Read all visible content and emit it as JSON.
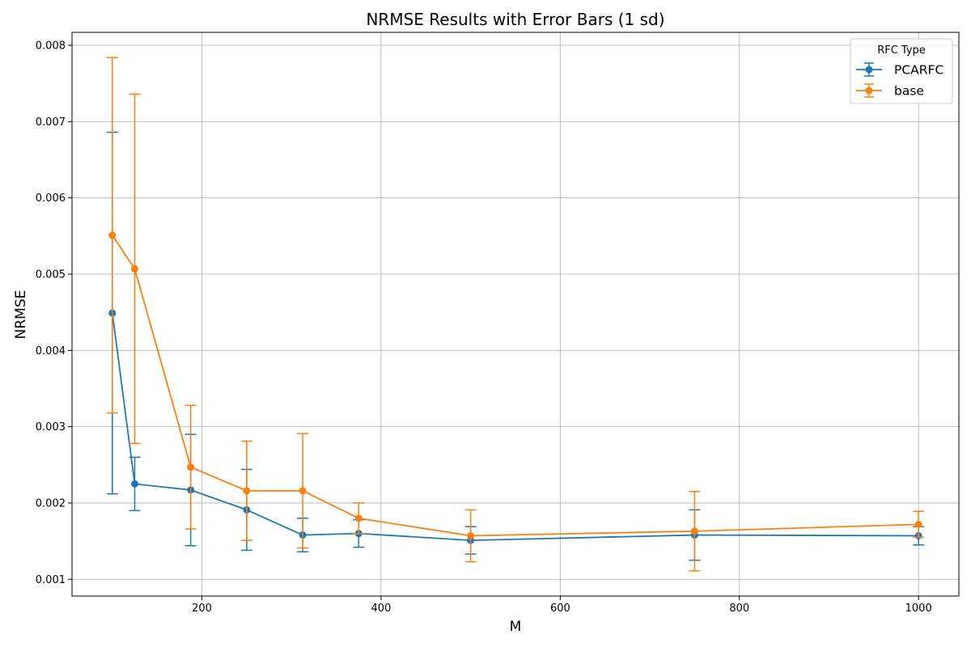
{
  "chart_data": {
    "type": "line",
    "title": "NRMSE Results with Error Bars (1 sd)",
    "xlabel": "M",
    "ylabel": "NRMSE",
    "xlim": [
      55,
      1045
    ],
    "ylim": [
      0.00078,
      0.00817
    ],
    "xticks": [
      200,
      400,
      600,
      800,
      1000
    ],
    "xtick_labels": [
      "200",
      "400",
      "600",
      "800",
      "1000"
    ],
    "yticks": [
      0.001,
      0.002,
      0.003,
      0.004,
      0.005,
      0.006,
      0.007,
      0.008
    ],
    "ytick_labels": [
      "0.001",
      "0.002",
      "0.003",
      "0.004",
      "0.005",
      "0.006",
      "0.007",
      "0.008"
    ],
    "grid": true,
    "error_bars": "1 sd",
    "legend": {
      "title": "RFC Type",
      "position": "top-right"
    },
    "series": [
      {
        "name": "PCARFC",
        "color": "#1f77b4",
        "x": [
          100,
          125,
          187.5,
          250,
          312.5,
          375,
          500,
          750,
          1000
        ],
        "y": [
          0.00449,
          0.00225,
          0.00217,
          0.00191,
          0.00158,
          0.0016,
          0.00151,
          0.00158,
          0.00157
        ],
        "yerr": [
          0.00237,
          0.00035,
          0.00073,
          0.00053,
          0.00022,
          0.00018,
          0.00018,
          0.00033,
          0.00012
        ]
      },
      {
        "name": "base",
        "color": "#ff7f0e",
        "x": [
          100,
          125,
          187.5,
          250,
          312.5,
          375,
          500,
          750,
          1000
        ],
        "y": [
          0.00551,
          0.00507,
          0.00247,
          0.00216,
          0.00216,
          0.0018,
          0.00157,
          0.00163,
          0.00172
        ],
        "yerr": [
          0.00233,
          0.00229,
          0.00081,
          0.00065,
          0.00075,
          0.0002,
          0.00034,
          0.00052,
          0.00017
        ]
      }
    ]
  }
}
